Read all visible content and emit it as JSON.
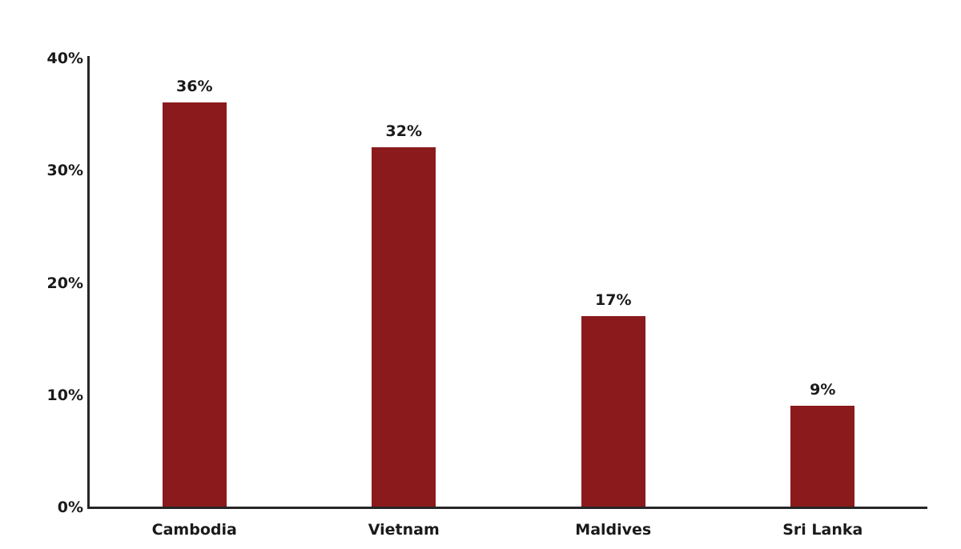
{
  "chart_data": {
    "type": "bar",
    "title": "",
    "xlabel": "",
    "ylabel": "",
    "categories": [
      "Cambodia",
      "Vietnam",
      "Maldives",
      "Sri Lanka"
    ],
    "values": [
      36,
      32,
      17,
      9
    ],
    "data_labels": [
      "36%",
      "32%",
      "17%",
      "9%"
    ],
    "ylim": [
      0,
      40
    ],
    "y_ticks": [
      0,
      10,
      20,
      30,
      40
    ],
    "y_tick_labels": [
      "0%",
      "10%",
      "20%",
      "30%",
      "40%"
    ],
    "grid": false,
    "legend": false,
    "colors": {
      "bar": "#8a1a1c",
      "axis": "#262626",
      "text": "#1a1a1a",
      "background": "#ffffff"
    }
  }
}
